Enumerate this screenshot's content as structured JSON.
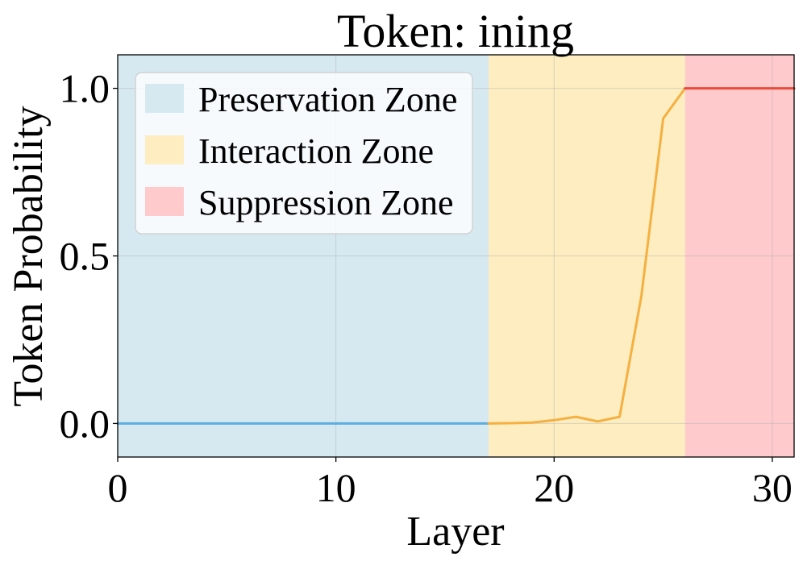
{
  "chart_data": {
    "type": "line",
    "title": "Token: ining",
    "xlabel": "Layer",
    "ylabel": "Token Probability",
    "xlim": [
      0,
      31
    ],
    "ylim": [
      -0.1,
      1.1
    ],
    "xticks": [
      0,
      10,
      20,
      30
    ],
    "yticks": [
      0.0,
      0.5,
      1.0
    ],
    "xtick_labels": [
      "0",
      "10",
      "20",
      "30"
    ],
    "ytick_labels": [
      "0.0",
      "0.5",
      "1.0"
    ],
    "grid": true,
    "legend_position": "top-left",
    "zones": [
      {
        "name": "Preservation Zone",
        "x_start": 0,
        "x_end": 17,
        "color": "#d6e9f1"
      },
      {
        "name": "Interaction Zone",
        "x_start": 17,
        "x_end": 26,
        "color": "#fdedc0"
      },
      {
        "name": "Suppression Zone",
        "x_start": 26,
        "x_end": 31,
        "color": "#fecacb"
      }
    ],
    "series": [
      {
        "x": [
          0,
          1,
          2,
          3,
          4,
          5,
          6,
          7,
          8,
          9,
          10,
          11,
          12,
          13,
          14,
          15,
          16,
          17
        ],
        "y": [
          0,
          0,
          0,
          0,
          0,
          0,
          0,
          0,
          0,
          0,
          0,
          0,
          0,
          0,
          0,
          0,
          0,
          0
        ],
        "color": "#5dade2"
      },
      {
        "x": [
          17,
          18,
          19,
          20,
          21,
          22,
          23,
          24,
          25,
          26
        ],
        "y": [
          0,
          0.001,
          0.003,
          0.01,
          0.02,
          0.006,
          0.02,
          0.38,
          0.91,
          1.0
        ],
        "color": "#f5b041"
      },
      {
        "x": [
          26,
          27,
          28,
          29,
          30,
          31
        ],
        "y": [
          1.0,
          1.0,
          1.0,
          1.0,
          1.0,
          1.0
        ],
        "color": "#e74c3c"
      }
    ]
  }
}
